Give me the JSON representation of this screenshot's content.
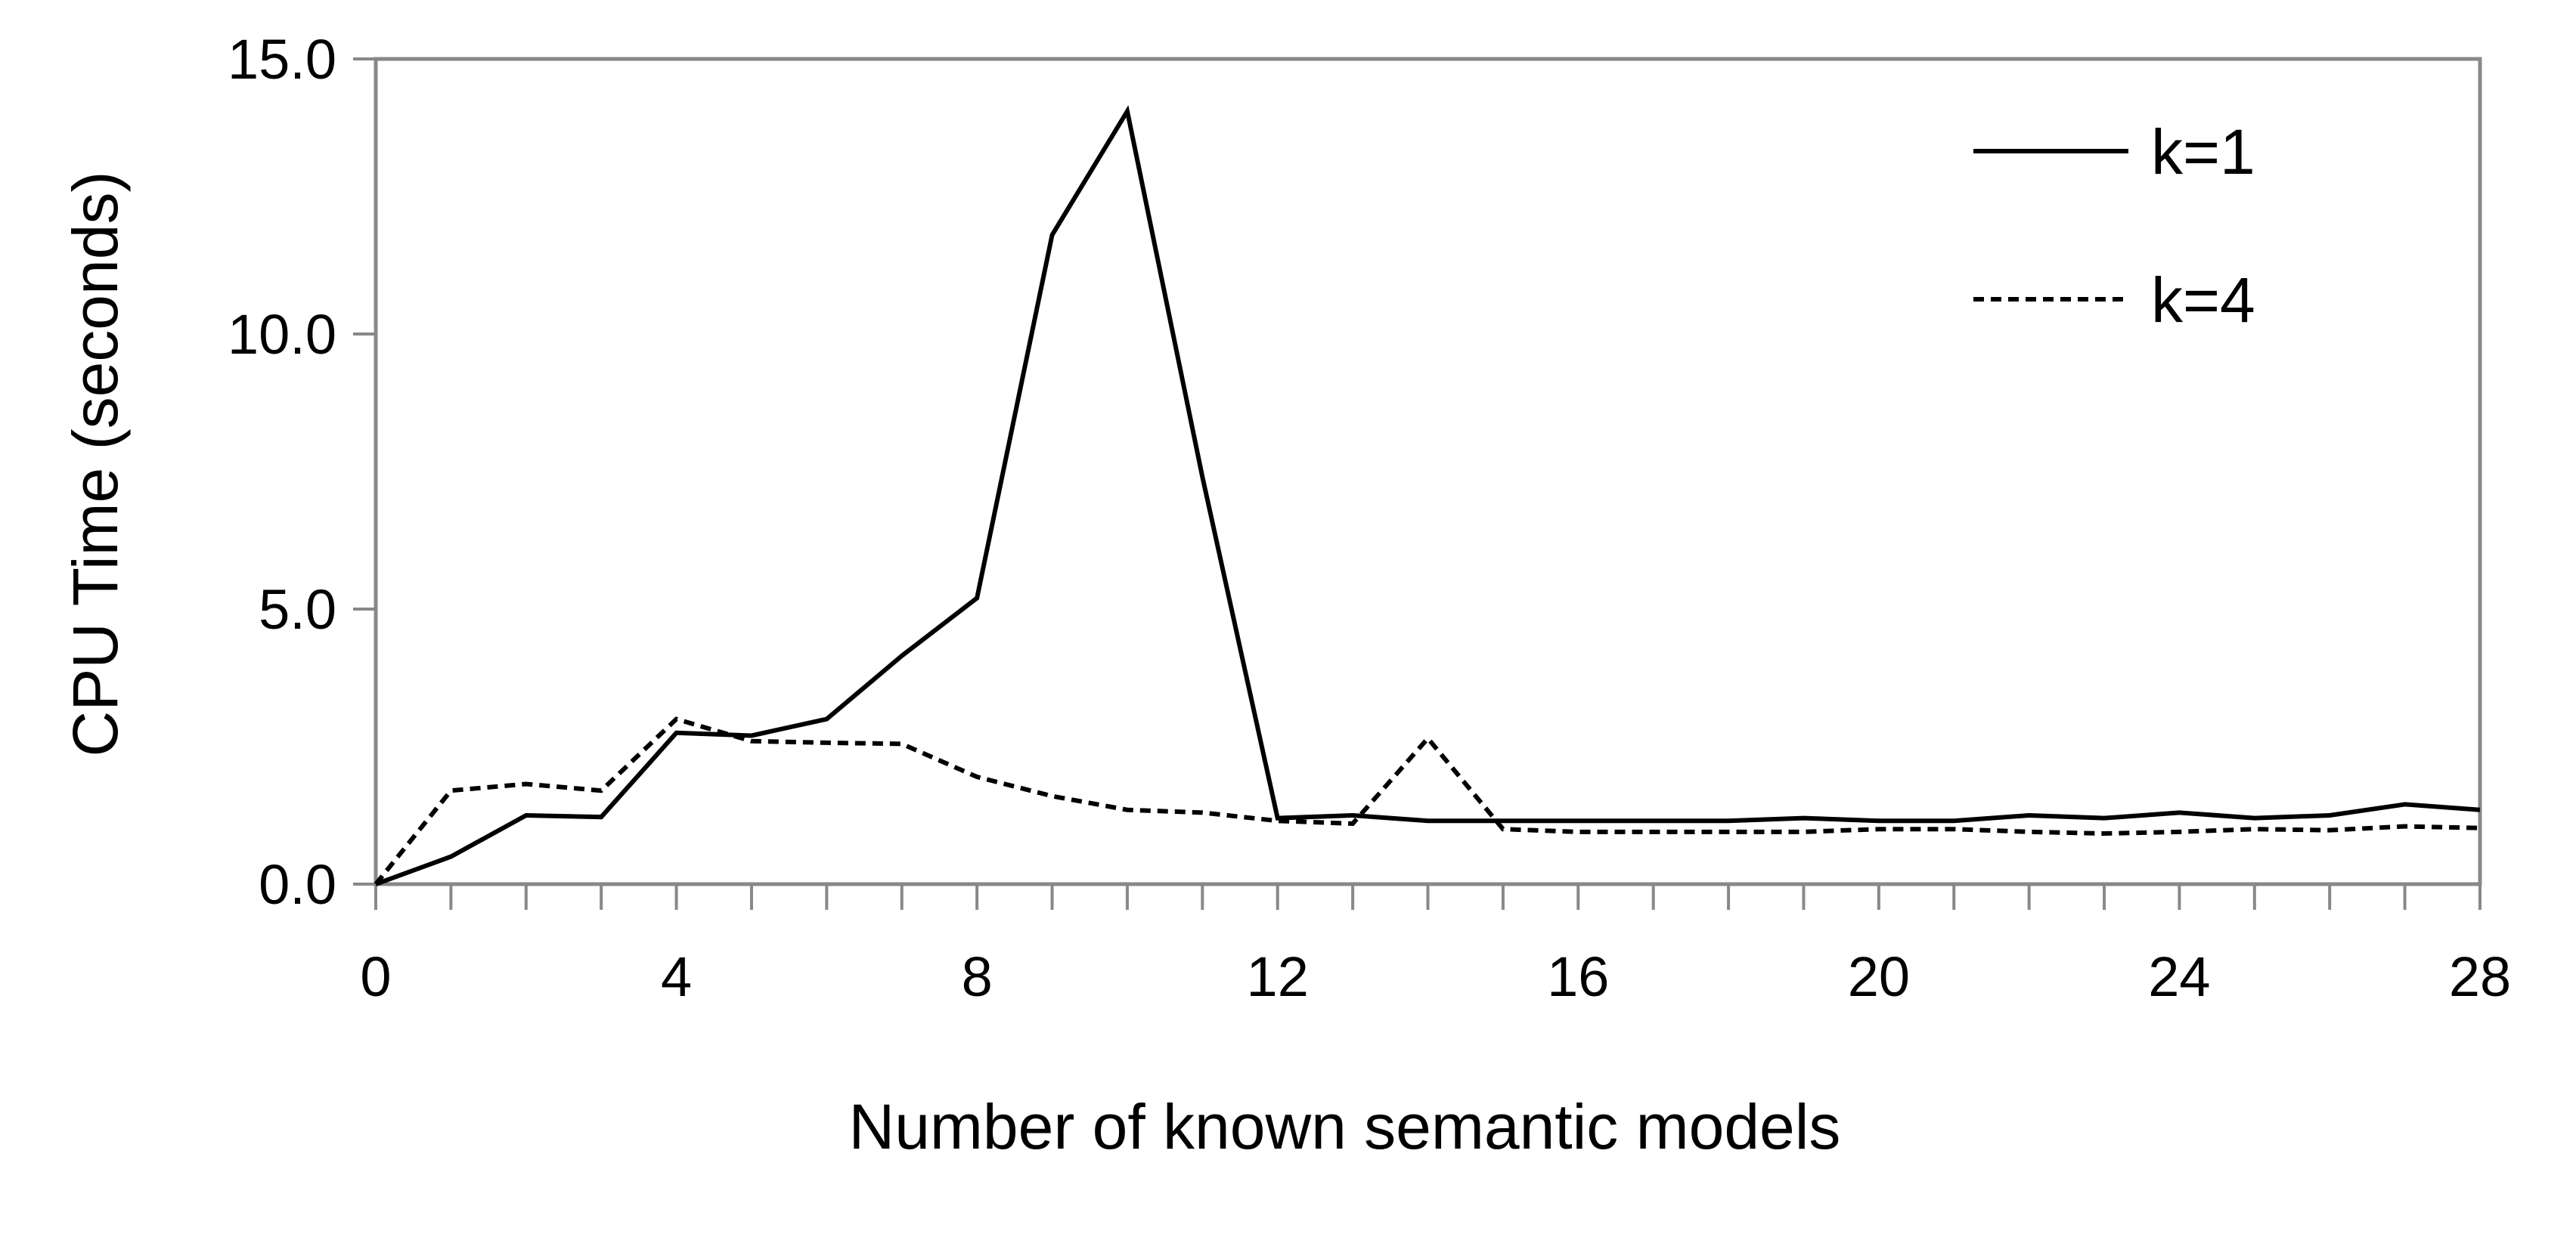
{
  "chart_data": {
    "type": "line",
    "title": "",
    "xlabel": "Number of known semantic models",
    "ylabel": "CPU Time (seconds)",
    "xlim": [
      0,
      28
    ],
    "ylim": [
      0,
      15
    ],
    "x_ticks": [
      0,
      4,
      8,
      12,
      16,
      20,
      24,
      28
    ],
    "x_tick_labels": [
      "0",
      "4",
      "8",
      "12",
      "16",
      "20",
      "24",
      "28"
    ],
    "y_ticks": [
      0,
      5,
      10,
      15
    ],
    "y_tick_labels": [
      "0.0",
      "5.0",
      "10.0",
      "15.0"
    ],
    "grid": false,
    "legend_position": "top-right",
    "x": [
      0,
      1,
      2,
      3,
      4,
      5,
      6,
      7,
      8,
      9,
      10,
      11,
      12,
      13,
      14,
      15,
      16,
      17,
      18,
      19,
      20,
      21,
      22,
      23,
      24,
      25,
      26,
      27,
      28
    ],
    "series": [
      {
        "name": "k=1",
        "style": "solid",
        "color": "#000000",
        "values": [
          0.0,
          0.5,
          1.25,
          1.22,
          2.75,
          2.7,
          3.0,
          4.15,
          5.2,
          11.8,
          14.05,
          7.4,
          1.2,
          1.25,
          1.15,
          1.15,
          1.15,
          1.15,
          1.15,
          1.2,
          1.15,
          1.15,
          1.25,
          1.2,
          1.3,
          1.2,
          1.25,
          1.45,
          1.35
        ]
      },
      {
        "name": "k=4",
        "style": "dashed",
        "color": "#000000",
        "values": [
          0.0,
          1.7,
          1.82,
          1.7,
          3.0,
          2.6,
          2.57,
          2.55,
          1.95,
          1.6,
          1.35,
          1.3,
          1.15,
          1.1,
          2.65,
          1.0,
          0.95,
          0.95,
          0.95,
          0.95,
          1.0,
          1.0,
          0.95,
          0.92,
          0.95,
          1.0,
          0.98,
          1.05,
          1.02
        ]
      }
    ]
  }
}
